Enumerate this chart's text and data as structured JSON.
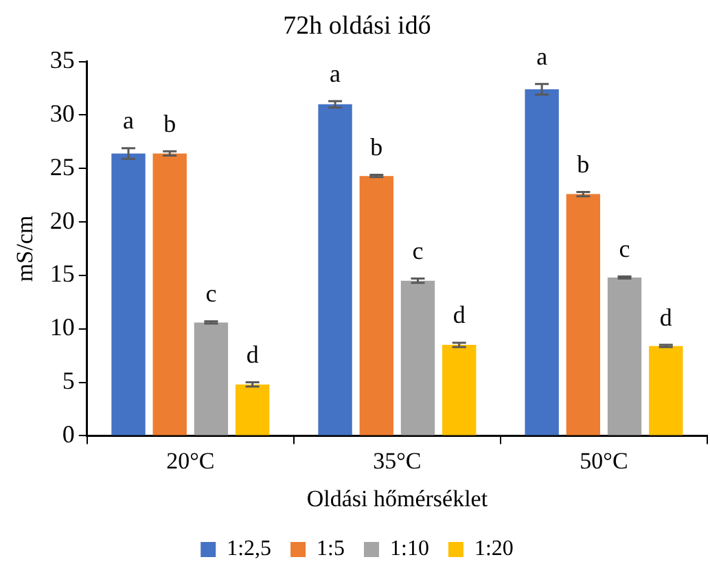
{
  "chart_data": {
    "type": "bar",
    "title": "72h oldási idő",
    "xlabel": "Oldási hőmérséklet",
    "ylabel": "mS/cm",
    "categories": [
      "20°C",
      "35°C",
      "50°C"
    ],
    "series": [
      {
        "name": "1:2,5",
        "color": "#4472c4",
        "values": [
          26.4,
          31.0,
          32.4
        ],
        "errors": [
          0.5,
          0.3,
          0.5
        ],
        "value_labels": [
          "a",
          "a",
          "a"
        ]
      },
      {
        "name": "1:5",
        "color": "#ed7d31",
        "values": [
          26.4,
          24.3,
          22.6
        ],
        "errors": [
          0.2,
          0.1,
          0.2
        ],
        "value_labels": [
          "b",
          "b",
          "b"
        ]
      },
      {
        "name": "1:10",
        "color": "#a5a5a5",
        "values": [
          10.6,
          14.5,
          14.8
        ],
        "errors": [
          0.1,
          0.2,
          0.1
        ],
        "value_labels": [
          "c",
          "c",
          "c"
        ]
      },
      {
        "name": "1:20",
        "color": "#ffc000",
        "values": [
          4.8,
          8.5,
          8.4
        ],
        "errors": [
          0.2,
          0.2,
          0.1
        ],
        "value_labels": [
          "d",
          "d",
          "d"
        ]
      }
    ],
    "ylim": [
      0,
      35
    ],
    "yticks": [
      0,
      5,
      10,
      15,
      20,
      25,
      30,
      35
    ],
    "grid": false,
    "legend": "bottom"
  }
}
